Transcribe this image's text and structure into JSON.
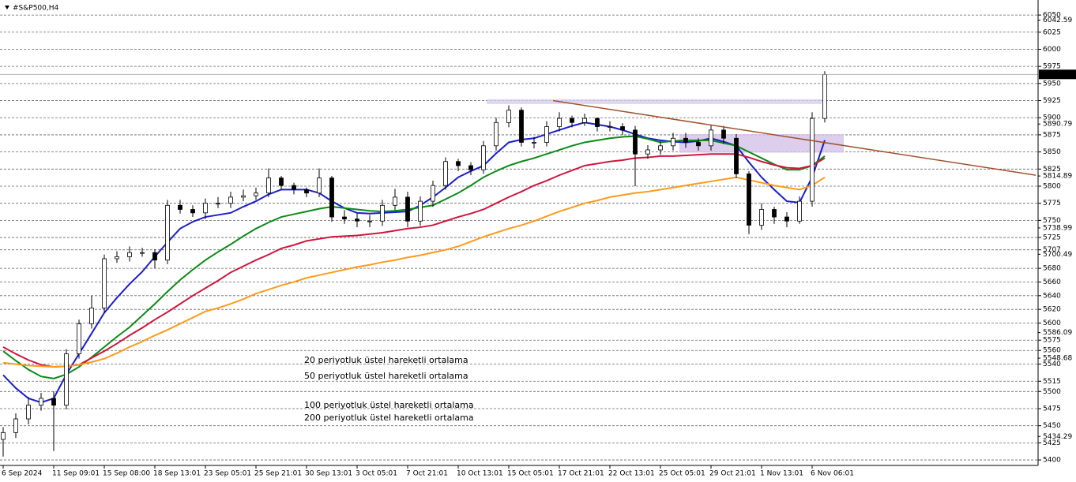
{
  "chart_data": {
    "type": "candlestick",
    "title": "#S&P500,H4",
    "categories": [
      "6 Sep 2024",
      null,
      null,
      null,
      "11 Sep 09:01",
      null,
      null,
      null,
      "15 Sep 08:00",
      null,
      null,
      null,
      "18 Sep 13:01",
      null,
      null,
      null,
      "23 Sep 05:01",
      null,
      null,
      null,
      "25 Sep 21:01",
      null,
      null,
      null,
      "30 Sep 13:01",
      null,
      null,
      null,
      "3 Oct 05:01",
      null,
      null,
      null,
      "7 Oct 21:01",
      null,
      null,
      null,
      "10 Oct 13:01",
      null,
      null,
      null,
      "15 Oct 05:01",
      null,
      null,
      null,
      "17 Oct 21:01",
      null,
      null,
      null,
      "22 Oct 13:01",
      null,
      null,
      null,
      "25 Oct 05:01",
      null,
      null,
      null,
      "29 Oct 21:01",
      null,
      null,
      null,
      "1 Nov 13:01",
      null,
      null,
      null,
      "6 Nov 06:01",
      null
    ],
    "open": [
      5430,
      5440,
      5460,
      5480,
      5490,
      5480,
      5555,
      5599,
      5622,
      5694,
      5697,
      5703,
      5703,
      5692,
      5772,
      5766,
      5761,
      5775,
      5775,
      5784,
      5786,
      5790,
      5812,
      5801,
      5795,
      5790,
      5812,
      5755,
      5752,
      5749,
      5749,
      5772,
      5784,
      5749,
      5778,
      5801,
      5836,
      5830,
      5824,
      5859,
      5893,
      5911,
      5864,
      5864,
      5887,
      5899,
      5893,
      5899,
      5887,
      5887,
      5882,
      5847,
      5853,
      5859,
      5870,
      5864,
      5859,
      5882,
      5870,
      5818,
      5743,
      5766,
      5755,
      5749,
      5778,
      5899
    ],
    "high": [
      5448,
      5468,
      5492,
      5498,
      5500,
      5562,
      5605,
      5640,
      5700,
      5705,
      5712,
      5710,
      5708,
      5780,
      5780,
      5772,
      5782,
      5784,
      5792,
      5795,
      5798,
      5826,
      5815,
      5805,
      5798,
      5826,
      5815,
      5765,
      5760,
      5758,
      5780,
      5796,
      5792,
      5785,
      5808,
      5842,
      5840,
      5835,
      5866,
      5900,
      5918,
      5915,
      5872,
      5895,
      5908,
      5903,
      5906,
      5900,
      5895,
      5892,
      5888,
      5860,
      5866,
      5878,
      5878,
      5870,
      5890,
      5888,
      5876,
      5822,
      5775,
      5770,
      5762,
      5785,
      5908,
      5968
    ],
    "low": [
      5405,
      5432,
      5452,
      5472,
      5413,
      5474,
      5548,
      5592,
      5615,
      5688,
      5690,
      5697,
      5680,
      5686,
      5760,
      5755,
      5752,
      5768,
      5768,
      5778,
      5780,
      5784,
      5795,
      5788,
      5784,
      5784,
      5748,
      5745,
      5740,
      5740,
      5742,
      5765,
      5740,
      5742,
      5770,
      5795,
      5822,
      5816,
      5818,
      5852,
      5886,
      5858,
      5855,
      5858,
      5880,
      5886,
      5888,
      5880,
      5880,
      5875,
      5800,
      5840,
      5846,
      5852,
      5856,
      5852,
      5852,
      5862,
      5812,
      5730,
      5736,
      5745,
      5740,
      5745,
      5770,
      5893
    ],
    "close": [
      5440,
      5460,
      5480,
      5490,
      5480,
      5555,
      5599,
      5622,
      5694,
      5697,
      5703,
      5703,
      5692,
      5772,
      5766,
      5761,
      5775,
      5775,
      5784,
      5786,
      5790,
      5812,
      5801,
      5795,
      5790,
      5812,
      5755,
      5752,
      5749,
      5749,
      5772,
      5784,
      5749,
      5778,
      5801,
      5836,
      5830,
      5824,
      5859,
      5893,
      5911,
      5864,
      5864,
      5887,
      5899,
      5893,
      5899,
      5887,
      5887,
      5882,
      5847,
      5853,
      5859,
      5870,
      5864,
      5859,
      5882,
      5870,
      5818,
      5743,
      5766,
      5755,
      5749,
      5778,
      5899,
      5963
    ],
    "series": [
      {
        "name": "20 periyotluk üstel hareketli ortalama",
        "color": "#1c1cd0",
        "values": [
          5524,
          5505,
          5490,
          5484,
          5490,
          5525,
          5555,
          5585,
          5615,
          5637,
          5657,
          5675,
          5697,
          5718,
          5738,
          5748,
          5755,
          5758,
          5761,
          5770,
          5778,
          5788,
          5795,
          5795,
          5795,
          5790,
          5778,
          5768,
          5761,
          5760,
          5761,
          5762,
          5763,
          5772,
          5784,
          5798,
          5813,
          5822,
          5830,
          5848,
          5864,
          5868,
          5870,
          5876,
          5882,
          5888,
          5893,
          5890,
          5887,
          5882,
          5876,
          5870,
          5867,
          5865,
          5864,
          5866,
          5870,
          5865,
          5859,
          5835,
          5813,
          5795,
          5778,
          5776,
          5813,
          5867
        ]
      },
      {
        "name": "50 periyotluk üstel hareketli ortalama",
        "color": "#0b8a16",
        "values": [
          5559,
          5545,
          5532,
          5522,
          5519,
          5525,
          5536,
          5550,
          5565,
          5580,
          5594,
          5611,
          5628,
          5646,
          5663,
          5678,
          5692,
          5704,
          5715,
          5727,
          5738,
          5747,
          5755,
          5759,
          5763,
          5767,
          5770,
          5768,
          5766,
          5764,
          5763,
          5764,
          5766,
          5769,
          5772,
          5781,
          5790,
          5801,
          5813,
          5822,
          5830,
          5836,
          5841,
          5847,
          5853,
          5859,
          5864,
          5867,
          5870,
          5872,
          5873,
          5869,
          5864,
          5866,
          5867,
          5867,
          5867,
          5863,
          5859,
          5850,
          5841,
          5832,
          5824,
          5824,
          5830,
          5844
        ]
      },
      {
        "name": "100 periyotluk üstel hareketli ortalama",
        "color": "#d0163e",
        "values": [
          5565,
          5555,
          5546,
          5539,
          5536,
          5537,
          5539,
          5549,
          5559,
          5570,
          5582,
          5593,
          5605,
          5616,
          5628,
          5640,
          5651,
          5662,
          5674,
          5683,
          5692,
          5700,
          5709,
          5714,
          5720,
          5723,
          5726,
          5727,
          5728,
          5730,
          5732,
          5735,
          5738,
          5740,
          5743,
          5749,
          5755,
          5760,
          5766,
          5775,
          5784,
          5792,
          5801,
          5808,
          5816,
          5823,
          5830,
          5833,
          5836,
          5838,
          5841,
          5842,
          5844,
          5844,
          5845,
          5846,
          5847,
          5847,
          5847,
          5842,
          5836,
          5831,
          5827,
          5826,
          5830,
          5841
        ]
      },
      {
        "name": "200 periyotluk üstel hareketli ortalama",
        "color": "#ff9a1a",
        "values": [
          5542,
          5540,
          5538,
          5537,
          5536,
          5537,
          5539,
          5543,
          5548,
          5556,
          5565,
          5573,
          5582,
          5590,
          5599,
          5608,
          5617,
          5622,
          5628,
          5635,
          5643,
          5649,
          5655,
          5660,
          5666,
          5670,
          5674,
          5678,
          5682,
          5685,
          5689,
          5692,
          5696,
          5699,
          5703,
          5707,
          5712,
          5719,
          5726,
          5732,
          5738,
          5743,
          5749,
          5756,
          5763,
          5769,
          5775,
          5779,
          5784,
          5787,
          5790,
          5792,
          5795,
          5798,
          5801,
          5804,
          5807,
          5810,
          5813,
          5809,
          5805,
          5801,
          5798,
          5795,
          5801,
          5813
        ]
      }
    ],
    "ylim": [
      5392,
      6072
    ],
    "yticks": [
      5400,
      5425,
      5450,
      5475,
      5500,
      5515,
      5540,
      5560,
      5575,
      5600,
      5620,
      5640,
      5660,
      5680,
      5707,
      5725,
      5750,
      5775,
      5800,
      5825,
      5850,
      5875,
      5900,
      5925,
      5950,
      5975,
      6000,
      6025,
      6050
    ],
    "scale_labels": [
      5434.29,
      5548.68,
      5586.09,
      5700.49,
      5738.99,
      5814.89,
      5890.79,
      6042.59
    ],
    "current_price": 5963.32,
    "grid": true,
    "trendline": {
      "color": "#a0522d",
      "x": [
        43.5,
        81.7
      ],
      "values": [
        5925,
        5816
      ]
    },
    "zones": [
      {
        "color": "#d4cdee",
        "x": [
          38.25,
          64.75
        ],
        "values": [
          5920,
          5927
        ]
      },
      {
        "color": "#d4c2ea",
        "x": [
          53.5,
          66.5
        ],
        "values": [
          5849,
          5876
        ]
      }
    ]
  }
}
